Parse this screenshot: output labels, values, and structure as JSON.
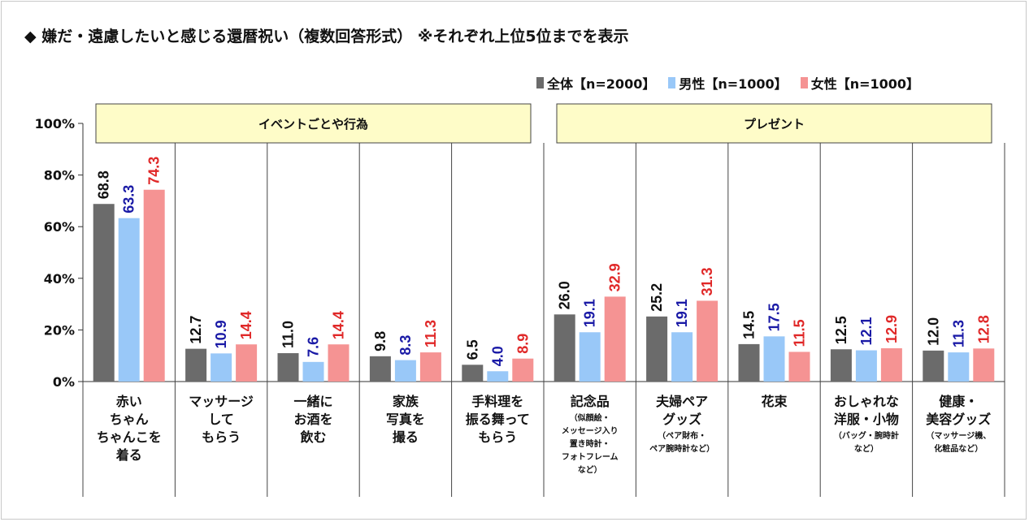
{
  "title": "◆ 嫌だ・遠慮したいと感じる還暦祝い（複数回答形式） ※それぞれ上位5位までを表示",
  "colors": {
    "total": "#6b6b6b",
    "male": "#99c8f8",
    "female": "#f59393",
    "total_label": "#111111",
    "male_label": "#1a1aa6",
    "female_label": "#e02828",
    "group_fill": "#fefcc8"
  },
  "chart_data": {
    "type": "bar",
    "ylim": [
      0,
      100
    ],
    "yticks": [
      "0%",
      "20%",
      "40%",
      "60%",
      "80%",
      "100%"
    ],
    "legend_position": "top-right",
    "series": [
      {
        "name": "全体【n=2000】",
        "values": [
          68.8,
          12.7,
          11.0,
          9.8,
          6.5,
          26.0,
          25.2,
          14.5,
          12.5,
          12.0
        ]
      },
      {
        "name": "男性【n=1000】",
        "values": [
          63.3,
          10.9,
          7.6,
          8.3,
          4.0,
          19.1,
          19.1,
          17.5,
          12.1,
          11.3
        ]
      },
      {
        "name": "女性【n=1000】",
        "values": [
          74.3,
          14.4,
          14.4,
          11.3,
          8.9,
          32.9,
          31.3,
          11.5,
          12.9,
          12.8
        ]
      }
    ],
    "value_labels": [
      [
        "68.8",
        "12.7",
        "11.0",
        "9.8",
        "6.5",
        "26.0",
        "25.2",
        "14.5",
        "12.5",
        "12.0"
      ],
      [
        "63.3",
        "10.9",
        "7.6",
        "8.3",
        "4.0",
        "19.1",
        "19.1",
        "17.5",
        "12.1",
        "11.3"
      ],
      [
        "74.3",
        "14.4",
        "14.4",
        "11.3",
        "8.9",
        "32.9",
        "31.3",
        "11.5",
        "12.9",
        "12.8"
      ]
    ],
    "groups": [
      {
        "label": "イベントごとや行為",
        "from": 0,
        "to": 4
      },
      {
        "label": "プレゼント",
        "from": 5,
        "to": 9
      }
    ],
    "categories": [
      {
        "lines": [
          "赤い",
          "ちゃん",
          "ちゃんこを",
          "着る"
        ],
        "sub": []
      },
      {
        "lines": [
          "マッサージ",
          "して",
          "もらう"
        ],
        "sub": []
      },
      {
        "lines": [
          "一緒に",
          "お酒を",
          "飲む"
        ],
        "sub": []
      },
      {
        "lines": [
          "家族",
          "写真を",
          "撮る"
        ],
        "sub": []
      },
      {
        "lines": [
          "手料理を",
          "振る舞って",
          "もらう"
        ],
        "sub": []
      },
      {
        "lines": [
          "記念品"
        ],
        "sub": [
          "（似顔絵・",
          "メッセージ入り",
          "置き時計・",
          "フォトフレーム",
          "など）"
        ]
      },
      {
        "lines": [
          "夫婦ペア",
          "グッズ"
        ],
        "sub": [
          "（ペア財布・",
          "ペア腕時計など）"
        ]
      },
      {
        "lines": [
          "花束"
        ],
        "sub": []
      },
      {
        "lines": [
          "おしゃれな",
          "洋服・小物"
        ],
        "sub": [
          "（バッグ・腕時計",
          "など）"
        ]
      },
      {
        "lines": [
          "健康・",
          "美容グッズ"
        ],
        "sub": [
          "（マッサージ機、",
          "化粧品など）"
        ]
      }
    ]
  }
}
